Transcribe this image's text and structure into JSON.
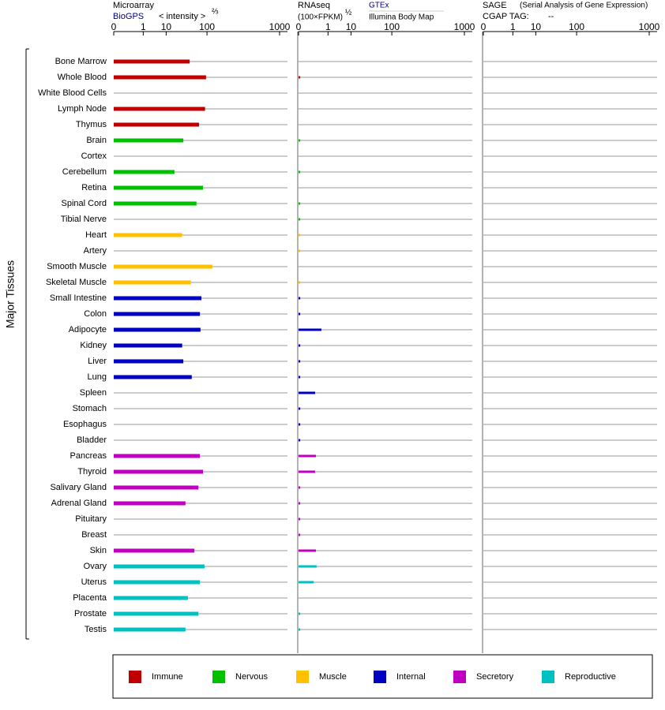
{
  "chart_data": [
    {
      "type": "bar",
      "orientation": "horizontal",
      "title": "Microarray",
      "source": "BioGPS",
      "xlabel": "< intensity >",
      "xlabel_power": "⅔",
      "ylabel": "Major Tissues",
      "categories": [
        "Bone Marrow",
        "Whole Blood",
        "White Blood Cells",
        "Lymph Node",
        "Thymus",
        "Brain",
        "Cortex",
        "Cerebellum",
        "Retina",
        "Spinal Cord",
        "Tibial Nerve",
        "Heart",
        "Artery",
        "Smooth Muscle",
        "Skeletal Muscle",
        "Small Intestine",
        "Colon",
        "Adipocyte",
        "Kidney",
        "Liver",
        "Lung",
        "Spleen",
        "Stomach",
        "Esophagus",
        "Bladder",
        "Pancreas",
        "Thyroid",
        "Salivary Gland",
        "Adrenal Gland",
        "Pituitary",
        "Breast",
        "Skin",
        "Ovary",
        "Uterus",
        "Placenta",
        "Prostate",
        "Testis"
      ],
      "colors": [
        "#c00000",
        "#c00000",
        "#c00000",
        "#c00000",
        "#c00000",
        "#00c000",
        "#00c000",
        "#00c000",
        "#00c000",
        "#00c000",
        "#00c000",
        "#ffc000",
        "#ffc000",
        "#ffc000",
        "#ffc000",
        "#0000c0",
        "#0000c0",
        "#0000c0",
        "#0000c0",
        "#0000c0",
        "#0000c0",
        "#0000c0",
        "#0000c0",
        "#0000c0",
        "#0000c0",
        "#c000c0",
        "#c000c0",
        "#c000c0",
        "#c000c0",
        "#c000c0",
        "#c000c0",
        "#c000c0",
        "#00c0c0",
        "#00c0c0",
        "#00c0c0",
        "#00c0c0",
        "#00c0c0"
      ],
      "values": [
        44,
        96,
        null,
        92,
        70,
        31,
        null,
        18,
        84,
        62,
        null,
        29,
        null,
        125,
        47,
        78,
        73,
        75,
        29,
        31,
        49,
        null,
        null,
        null,
        null,
        73,
        84,
        68,
        35,
        null,
        null,
        56,
        90,
        73,
        40,
        68,
        35
      ],
      "xlim": [
        0,
        1000
      ],
      "xticks": [
        0,
        1,
        10,
        100,
        1000
      ],
      "xscale": "power",
      "xscale_exponent": 0.25
    },
    {
      "type": "bar",
      "orientation": "horizontal",
      "title": "RNAseq",
      "xlabel": "(100×FPKM)",
      "xlabel_power": "½",
      "sources": [
        "GTEx",
        "Illumina Body Map"
      ],
      "values": [
        null,
        1e-05,
        null,
        null,
        null,
        1e-05,
        null,
        1e-05,
        null,
        1e-05,
        1e-05,
        1e-05,
        1e-05,
        null,
        1e-05,
        1e-05,
        1e-05,
        0.36,
        1e-05,
        1e-05,
        1e-05,
        0.1,
        1e-05,
        1e-05,
        1e-05,
        0.12,
        0.1,
        1e-05,
        1e-05,
        1e-05,
        1e-05,
        0.12,
        0.14,
        0.07,
        null,
        1e-05,
        1e-05
      ],
      "xlim": [
        0,
        1000
      ],
      "xticks": [
        0,
        1,
        10,
        100,
        1000
      ],
      "xscale": "power",
      "xscale_exponent": 0.25
    },
    {
      "type": "bar",
      "orientation": "horizontal",
      "title": "SAGE",
      "subtitle": "(Serial Analysis of Gene Expression)",
      "tag_label": "CGAP TAG:",
      "tag": "--",
      "xlim": [
        0,
        1000
      ],
      "xticks": [
        0,
        1,
        10,
        100,
        1000
      ],
      "xscale": "power",
      "xscale_exponent": 0.25
    }
  ],
  "legend": [
    {
      "name": "Immune",
      "color": "#c00000"
    },
    {
      "name": "Nervous",
      "color": "#00c000"
    },
    {
      "name": "Muscle",
      "color": "#ffc000"
    },
    {
      "name": "Internal",
      "color": "#0000c0"
    },
    {
      "name": "Secretory",
      "color": "#c000c0"
    },
    {
      "name": "Reproductive",
      "color": "#00c0c0"
    }
  ]
}
